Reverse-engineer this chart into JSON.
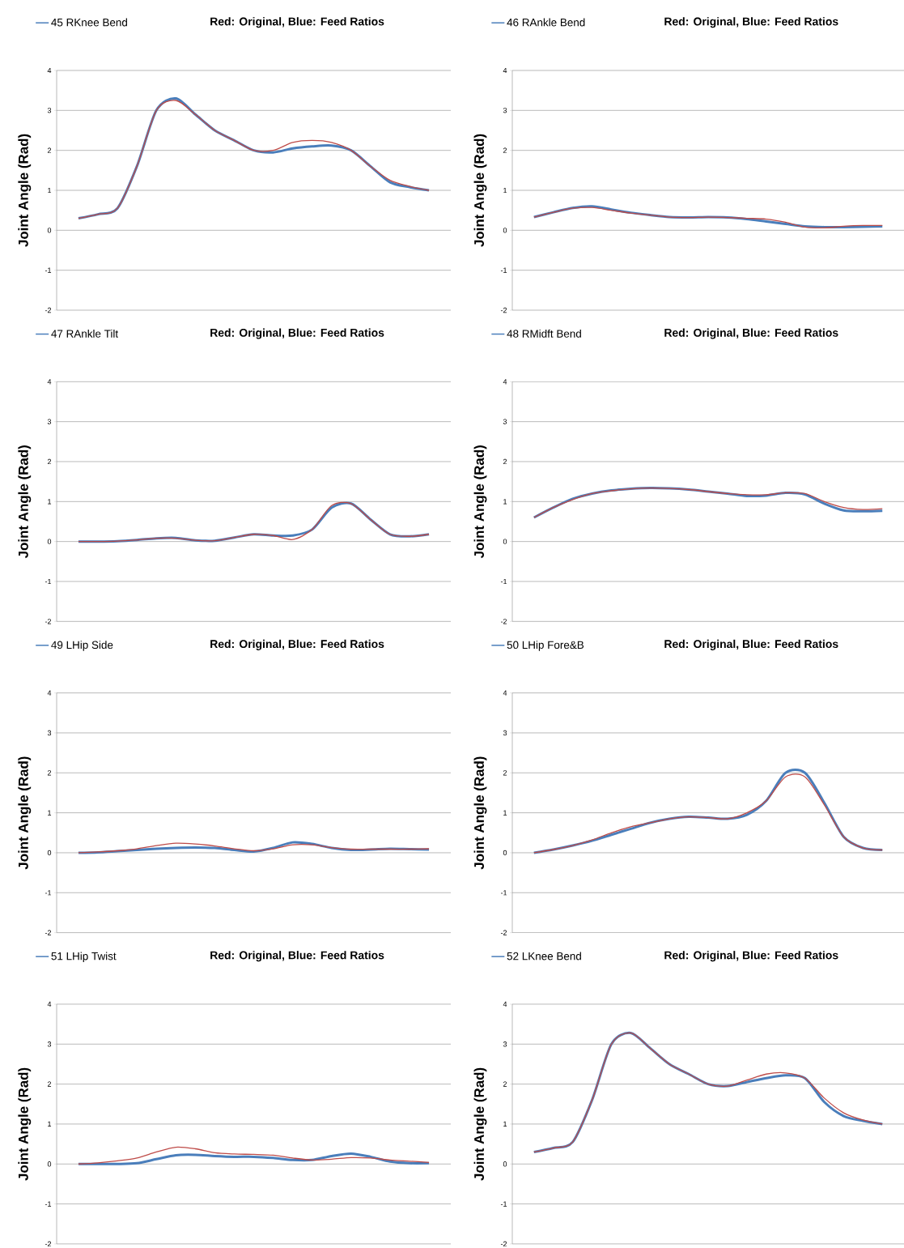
{
  "chart_data": [
    {
      "type": "line",
      "title": "Red: Original, Blue: Feed Ratios",
      "ylabel": "Joint Angle (Rad)",
      "categories": [
        null,
        null,
        null,
        null,
        null,
        null,
        null,
        null,
        null,
        null,
        null,
        null,
        null,
        null,
        null,
        null,
        null,
        null,
        null
      ],
      "series": [
        {
          "name": "45 RKnee Bend",
          "color": "#4a7ebb",
          "values": [
            0.3,
            0.4,
            0.55,
            1.6,
            3.0,
            3.3,
            2.9,
            2.5,
            2.25,
            2.0,
            1.95,
            2.05,
            2.1,
            2.12,
            2.0,
            1.6,
            1.2,
            1.08,
            1.0
          ]
        },
        {
          "color": "#be4b48",
          "values": [
            0.3,
            0.4,
            0.55,
            1.6,
            3.0,
            3.25,
            2.9,
            2.5,
            2.25,
            2.0,
            2.0,
            2.2,
            2.25,
            2.2,
            2.0,
            1.6,
            1.25,
            1.1,
            1.0
          ]
        }
      ],
      "ylim": [
        -2,
        4
      ],
      "yticks": [
        -2,
        -1,
        0,
        1,
        2,
        3,
        4
      ],
      "grid": "y",
      "legend": "top left",
      "tick_labels": "y"
    },
    {
      "type": "line",
      "title": "Red: Original, Blue: Feed Ratios",
      "ylabel": "Joint Angle (Rad)",
      "categories": [
        null,
        null,
        null,
        null,
        null,
        null,
        null,
        null,
        null,
        null,
        null,
        null,
        null,
        null,
        null,
        null,
        null,
        null,
        null
      ],
      "series": [
        {
          "name": "46 RAnkle Bend",
          "color": "#4a7ebb",
          "values": [
            0.33,
            0.45,
            0.56,
            0.6,
            0.52,
            0.44,
            0.38,
            0.33,
            0.32,
            0.33,
            0.32,
            0.28,
            0.22,
            0.16,
            0.1,
            0.08,
            0.08,
            0.09,
            0.1
          ]
        },
        {
          "color": "#be4b48",
          "values": [
            0.33,
            0.45,
            0.55,
            0.57,
            0.5,
            0.43,
            0.38,
            0.33,
            0.32,
            0.33,
            0.32,
            0.3,
            0.28,
            0.2,
            0.08,
            0.06,
            0.1,
            0.12,
            0.12
          ]
        }
      ],
      "ylim": [
        -2,
        4
      ],
      "yticks": [
        -2,
        -1,
        0,
        1,
        2,
        3,
        4
      ],
      "grid": "y",
      "legend": "top left",
      "tick_labels": "y"
    },
    {
      "type": "line",
      "title": "Red: Original, Blue: Feed Ratios",
      "ylabel": "Joint Angle (Rad)",
      "categories": [
        null,
        null,
        null,
        null,
        null,
        null,
        null,
        null,
        null,
        null,
        null,
        null,
        null,
        null,
        null,
        null,
        null,
        null,
        null
      ],
      "series": [
        {
          "name": "47 RAnkle Tilt",
          "color": "#4a7ebb",
          "values": [
            0,
            0,
            0.01,
            0.04,
            0.08,
            0.09,
            0.03,
            0.02,
            0.1,
            0.18,
            0.15,
            0.15,
            0.3,
            0.85,
            0.95,
            0.55,
            0.18,
            0.13,
            0.18
          ]
        },
        {
          "color": "#be4b48",
          "values": [
            0,
            0,
            0.01,
            0.04,
            0.08,
            0.08,
            0.03,
            0.02,
            0.1,
            0.18,
            0.15,
            0.05,
            0.3,
            0.9,
            0.95,
            0.55,
            0.18,
            0.13,
            0.18
          ]
        }
      ],
      "ylim": [
        -2,
        4
      ],
      "yticks": [
        -2,
        -1,
        0,
        1,
        2,
        3,
        4
      ],
      "grid": "y",
      "legend": "top left",
      "tick_labels": "y"
    },
    {
      "type": "line",
      "title": "Red: Original, Blue: Feed Ratios",
      "ylabel": "Joint Angle (Rad)",
      "categories": [
        null,
        null,
        null,
        null,
        null,
        null,
        null,
        null,
        null,
        null,
        null,
        null,
        null,
        null,
        null,
        null,
        null,
        null,
        null
      ],
      "series": [
        {
          "name": "48 RMidft Bend",
          "color": "#4a7ebb",
          "values": [
            0.6,
            0.85,
            1.07,
            1.2,
            1.28,
            1.32,
            1.34,
            1.33,
            1.3,
            1.25,
            1.2,
            1.14,
            1.15,
            1.22,
            1.18,
            0.95,
            0.78,
            0.76,
            0.77
          ]
        },
        {
          "color": "#be4b48",
          "values": [
            0.6,
            0.85,
            1.05,
            1.2,
            1.27,
            1.32,
            1.34,
            1.33,
            1.3,
            1.25,
            1.2,
            1.17,
            1.17,
            1.22,
            1.2,
            1.0,
            0.85,
            0.8,
            0.82
          ]
        }
      ],
      "ylim": [
        -2,
        4
      ],
      "yticks": [
        -2,
        -1,
        0,
        1,
        2,
        3,
        4
      ],
      "grid": "y",
      "legend": "top left",
      "tick_labels": "y"
    },
    {
      "type": "line",
      "title": "Red: Original, Blue: Feed Ratios",
      "ylabel": "Joint Angle (Rad)",
      "categories": [
        null,
        null,
        null,
        null,
        null,
        null,
        null,
        null,
        null,
        null,
        null,
        null,
        null,
        null,
        null,
        null,
        null,
        null,
        null
      ],
      "series": [
        {
          "name": "49 LHip Side",
          "color": "#4a7ebb",
          "values": [
            0,
            0.01,
            0.04,
            0.07,
            0.1,
            0.12,
            0.13,
            0.12,
            0.07,
            0.03,
            0.12,
            0.26,
            0.22,
            0.12,
            0.07,
            0.08,
            0.1,
            0.09,
            0.08
          ]
        },
        {
          "color": "#be4b48",
          "values": [
            0,
            0.02,
            0.05,
            0.1,
            0.18,
            0.24,
            0.22,
            0.17,
            0.1,
            0.05,
            0.1,
            0.2,
            0.2,
            0.13,
            0.09,
            0.09,
            0.09,
            0.09,
            0.1
          ]
        }
      ],
      "ylim": [
        -2,
        4
      ],
      "yticks": [
        -2,
        -1,
        0,
        1,
        2,
        3,
        4
      ],
      "grid": "y",
      "legend": "top left",
      "tick_labels": "y"
    },
    {
      "type": "line",
      "title": "Red: Original, Blue: Feed Ratios",
      "ylabel": "Joint Angle (Rad)",
      "categories": [
        null,
        null,
        null,
        null,
        null,
        null,
        null,
        null,
        null,
        null,
        null,
        null,
        null,
        null,
        null,
        null,
        null,
        null,
        null
      ],
      "series": [
        {
          "name": "50 LHip Fore&B",
          "color": "#4a7ebb",
          "values": [
            0,
            0.08,
            0.18,
            0.3,
            0.45,
            0.6,
            0.75,
            0.85,
            0.9,
            0.88,
            0.85,
            0.95,
            1.3,
            2.0,
            2.0,
            1.25,
            0.4,
            0.12,
            0.07
          ]
        },
        {
          "color": "#be4b48",
          "values": [
            0,
            0.08,
            0.18,
            0.32,
            0.5,
            0.65,
            0.75,
            0.85,
            0.9,
            0.88,
            0.85,
            1.0,
            1.3,
            1.9,
            1.9,
            1.2,
            0.4,
            0.12,
            0.07
          ]
        }
      ],
      "ylim": [
        -2,
        4
      ],
      "yticks": [
        -2,
        -1,
        0,
        1,
        2,
        3,
        4
      ],
      "grid": "y",
      "legend": "top left",
      "tick_labels": "y"
    },
    {
      "type": "line",
      "title": "Red: Original, Blue: Feed Ratios",
      "ylabel": "Joint Angle (Rad)",
      "categories": [
        null,
        null,
        null,
        null,
        null,
        null,
        null,
        null,
        null,
        null,
        null,
        null,
        null,
        null,
        null,
        null,
        null,
        null,
        null
      ],
      "series": [
        {
          "name": "51 LHip Twist",
          "color": "#4a7ebb",
          "values": [
            0,
            0,
            0,
            0.02,
            0.12,
            0.22,
            0.23,
            0.2,
            0.18,
            0.18,
            0.15,
            0.1,
            0.1,
            0.2,
            0.26,
            0.18,
            0.06,
            0.02,
            0.02
          ]
        },
        {
          "color": "#be4b48",
          "values": [
            0,
            0.03,
            0.08,
            0.15,
            0.3,
            0.42,
            0.38,
            0.28,
            0.25,
            0.24,
            0.22,
            0.15,
            0.1,
            0.12,
            0.16,
            0.15,
            0.1,
            0.07,
            0.04
          ]
        }
      ],
      "ylim": [
        -2,
        4
      ],
      "yticks": [
        -2,
        -1,
        0,
        1,
        2,
        3,
        4
      ],
      "grid": "y",
      "legend": "top left",
      "tick_labels": "y"
    },
    {
      "type": "line",
      "title": "Red: Original, Blue: Feed Ratios",
      "ylabel": "Joint Angle (Rad)",
      "categories": [
        null,
        null,
        null,
        null,
        null,
        null,
        null,
        null,
        null,
        null,
        null,
        null,
        null,
        null,
        null,
        null,
        null,
        null,
        null
      ],
      "series": [
        {
          "name": "52 LKnee Bend",
          "color": "#4a7ebb",
          "values": [
            0.3,
            0.4,
            0.55,
            1.6,
            3.0,
            3.28,
            2.9,
            2.5,
            2.25,
            2.0,
            1.95,
            2.05,
            2.15,
            2.22,
            2.15,
            1.55,
            1.2,
            1.08,
            1.0
          ]
        },
        {
          "color": "#be4b48",
          "values": [
            0.3,
            0.4,
            0.55,
            1.6,
            3.0,
            3.28,
            2.9,
            2.5,
            2.25,
            2.0,
            1.95,
            2.1,
            2.25,
            2.28,
            2.15,
            1.65,
            1.28,
            1.1,
            1.0
          ]
        }
      ],
      "ylim": [
        -2,
        4
      ],
      "yticks": [
        -2,
        -1,
        0,
        1,
        2,
        3,
        4
      ],
      "grid": "y",
      "legend": "top left",
      "tick_labels": "y"
    }
  ]
}
